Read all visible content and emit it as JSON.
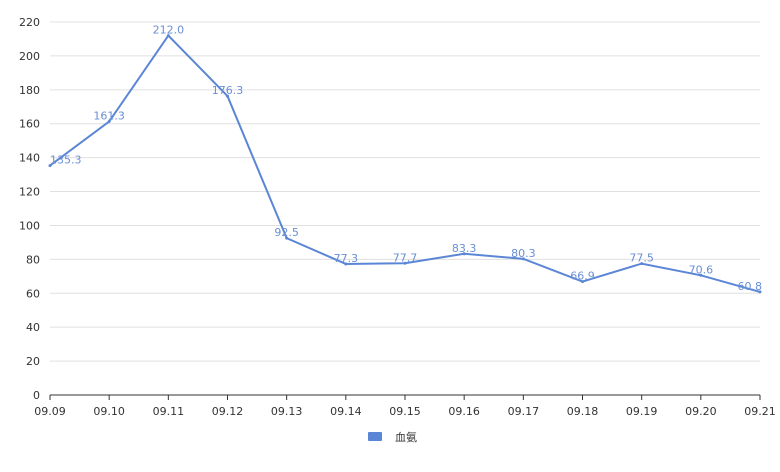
{
  "chart_data": {
    "type": "line",
    "categories": [
      "09.09",
      "09.10",
      "09.11",
      "09.12",
      "09.13",
      "09.14",
      "09.15",
      "09.16",
      "09.17",
      "09.18",
      "09.19",
      "09.20",
      "09.21"
    ],
    "series": [
      {
        "name": "血氨",
        "values": [
          135.3,
          161.3,
          212.0,
          176.3,
          92.5,
          77.3,
          77.7,
          83.3,
          80.3,
          66.9,
          77.5,
          70.6,
          60.8
        ]
      }
    ],
    "data_labels": [
      "135.3",
      "161.3",
      "212.0",
      "176.3",
      "92.5",
      "77.3",
      "77.7",
      "83.3",
      "80.3",
      "66.9",
      "77.5",
      "70.6",
      "60.8"
    ],
    "ylim": [
      0,
      220
    ],
    "yticks": [
      0,
      20,
      40,
      60,
      80,
      100,
      120,
      140,
      160,
      180,
      200,
      220
    ],
    "grid": true,
    "legend_position": "bottom-center",
    "colors": {
      "line": "#5b86d6",
      "label": "#6a8fd6",
      "grid": "#e0e0e0",
      "axis": "#333333"
    }
  }
}
